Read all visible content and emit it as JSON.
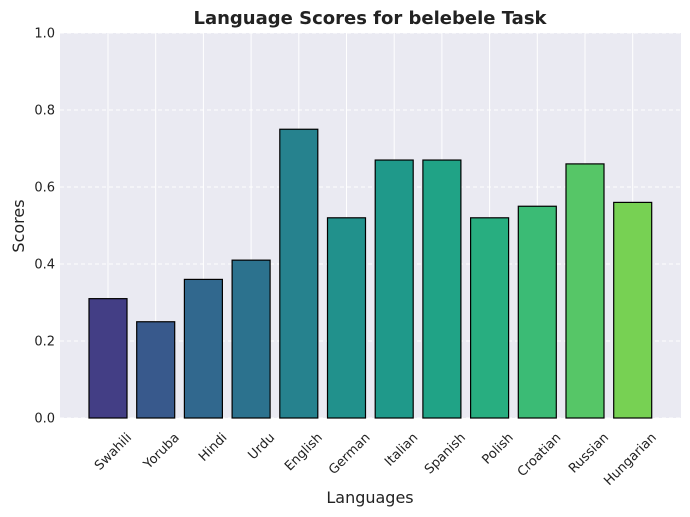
{
  "chart_data": {
    "type": "bar",
    "title": "Language Scores for belebele Task",
    "xlabel": "Languages",
    "ylabel": "Scores",
    "categories": [
      "Swahili",
      "Yoruba",
      "Hindi",
      "Urdu",
      "English",
      "German",
      "Italian",
      "Spanish",
      "Polish",
      "Croatian",
      "Russian",
      "Hungarian"
    ],
    "values": [
      0.31,
      0.25,
      0.36,
      0.41,
      0.75,
      0.52,
      0.67,
      0.67,
      0.52,
      0.55,
      0.66,
      0.56
    ],
    "colors": [
      "#433e85",
      "#38598c",
      "#31688e",
      "#2c728e",
      "#26828e",
      "#21918c",
      "#1f998a",
      "#20a386",
      "#28ae80",
      "#3bbb75",
      "#56c667",
      "#77d153"
    ],
    "ylim": [
      0,
      1.0
    ],
    "yticks": [
      "0.0",
      "0.2",
      "0.4",
      "0.6",
      "0.8",
      "1.0"
    ],
    "grid": true,
    "plot_background": "#eaeaf2",
    "bar_edge_color": "#000000"
  }
}
